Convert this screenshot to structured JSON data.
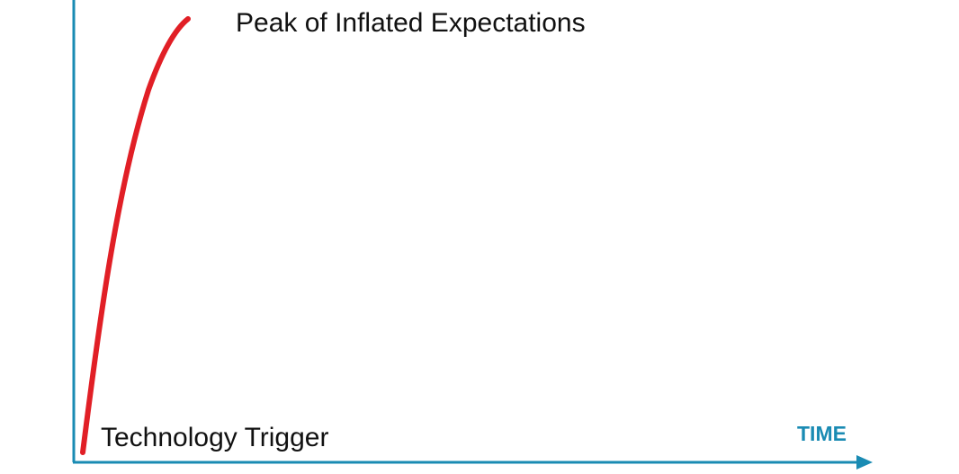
{
  "diagram": {
    "peak_label": "Peak of Inflated Expectations",
    "trigger_label": "Technology Trigger",
    "x_axis_label": "TIME"
  },
  "colors": {
    "axis": "#1a8bb3",
    "curve": "#e11f26",
    "text": "#111111",
    "axis_label": "#1a8bb3",
    "background": "#ffffff"
  }
}
